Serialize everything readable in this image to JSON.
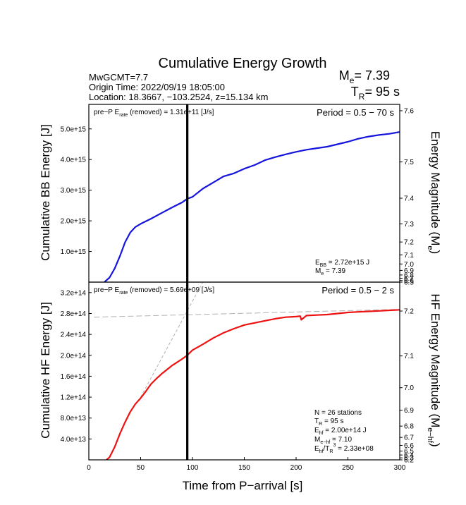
{
  "header": {
    "title": "Cumulative Energy Growth",
    "event_name": "MwGCMT=7.7",
    "origin_time": "Origin Time: 2022/09/19 18:05:00",
    "location": "Location: 18.3667, −103.2524, z=15.134 km",
    "me_prefix": "M",
    "me_sub": "e",
    "me_value": "= 7.39",
    "tr_prefix": "T",
    "tr_sub": "R",
    "tr_value": "= 95 s"
  },
  "x_axis": {
    "label": "Time from P−arrival [s]",
    "range": [
      0,
      300
    ],
    "ticks": [
      0,
      50,
      100,
      150,
      200,
      250,
      300
    ],
    "marker_time": 95
  },
  "chart_data": [
    {
      "type": "line",
      "panel": "broadband",
      "ylabel": "Cumulative BB Energy [J]",
      "ylabel_right": "Energy Magnitude (M",
      "ylabel_right_sub": "e",
      "ylabel_right_end": ")",
      "ylim": [
        0,
        5800000000000000.0
      ],
      "ytick_values": [
        1000000000000000.0,
        2000000000000000.0,
        3000000000000000.0,
        4000000000000000.0,
        5000000000000000.0
      ],
      "ytick_labels": [
        "1.0e+15",
        "2.0e+15",
        "3.0e+15",
        "4.0e+15",
        "5.0e+15"
      ],
      "right_ticks": [
        "7.6",
        "7.5",
        "7.4",
        "7.3",
        "7.2",
        "7.1",
        "7.0",
        "6.9",
        "6.8",
        "6.7",
        "6.6",
        "6.5"
      ],
      "right_tick_values": [
        7.6,
        7.5,
        7.4,
        7.3,
        7.2,
        7.1,
        7.0,
        6.9,
        6.8,
        6.7,
        6.6,
        6.5
      ],
      "period_label": "Period = 0.5 − 70 s",
      "pre_p_prefix": "pre−P E",
      "pre_p_sub": "rate",
      "pre_p_value": " (removed) = 1.31e+11 [J/s]",
      "annot_energy_prefix": "E",
      "annot_energy_sub": "BB",
      "annot_energy_value": " = 2.72e+15 J",
      "annot_mag_prefix": "M",
      "annot_mag_sub": "e",
      "annot_mag_value": " = 7.39",
      "line_color": "#1515dd",
      "x": [
        15,
        20,
        25,
        30,
        35,
        40,
        45,
        50,
        60,
        70,
        80,
        90,
        95,
        100,
        110,
        120,
        130,
        140,
        150,
        160,
        170,
        180,
        190,
        200,
        210,
        220,
        230,
        240,
        250,
        260,
        270,
        280,
        290,
        300
      ],
      "y": [
        0,
        150000000000000.0,
        450000000000000.0,
        850000000000000.0,
        1300000000000000.0,
        1620000000000000.0,
        1800000000000000.0,
        1900000000000000.0,
        2070000000000000.0,
        2250000000000000.0,
        2430000000000000.0,
        2600000000000000.0,
        2720000000000000.0,
        2780000000000000.0,
        3050000000000000.0,
        3250000000000000.0,
        3450000000000000.0,
        3550000000000000.0,
        3700000000000000.0,
        3820000000000000.0,
        3980000000000000.0,
        4080000000000000.0,
        4170000000000000.0,
        4250000000000000.0,
        4320000000000000.0,
        4370000000000000.0,
        4420000000000000.0,
        4500000000000000.0,
        4580000000000000.0,
        4680000000000000.0,
        4750000000000000.0,
        4800000000000000.0,
        4840000000000000.0,
        4900000000000000.0
      ]
    },
    {
      "type": "line",
      "panel": "high-frequency",
      "ylabel": "Cumulative HF Energy [J]",
      "ylabel_right": "HF Energy Magnitude (M",
      "ylabel_right_sub": "e−hf",
      "ylabel_right_end": ")",
      "ylim": [
        0,
        340000000000000.0
      ],
      "ytick_values": [
        40000000000000.0,
        80000000000000.0,
        120000000000000.0,
        160000000000000.0,
        200000000000000.0,
        240000000000000.0,
        280000000000000.0,
        320000000000000.0
      ],
      "ytick_labels": [
        "4.0e+13",
        "8.0e+13",
        "1.2e+14",
        "1.6e+14",
        "2.0e+14",
        "2.4e+14",
        "2.8e+14",
        "3.2e+14"
      ],
      "right_ticks": [
        "7.2",
        "7.1",
        "7.0",
        "6.9",
        "6.8",
        "6.7",
        "6.6",
        "6.5",
        "6.4",
        "6.3",
        "6.2"
      ],
      "right_tick_values": [
        7.2,
        7.1,
        7.0,
        6.9,
        6.8,
        6.7,
        6.6,
        6.5,
        6.4,
        6.3,
        6.2
      ],
      "period_label": "Period = 0.5 − 2 s",
      "pre_p_prefix": "pre−P E",
      "pre_p_sub": "rate",
      "pre_p_value": " (removed) = 5.69e+09 [J/s]",
      "annot_stations": "N = 26 stations",
      "annot_tr_prefix": "T",
      "annot_tr_sub": "R",
      "annot_tr_value": " = 95  s",
      "annot_ehf_prefix": "E",
      "annot_ehf_sub": "hf",
      "annot_ehf_value": " = 2.00e+14 J",
      "annot_mehf_prefix": "M",
      "annot_mehf_sub": "e−hf",
      "annot_mehf_value": " = 7.10",
      "annot_ratio_prefix": "E",
      "annot_ratio_sub": "hf",
      "annot_ratio_mid": "/T",
      "annot_ratio_sub2": "R",
      "annot_ratio_sup": "3",
      "annot_ratio_value": " =  2.33e+08",
      "line_color": "#ee1111",
      "x": [
        17,
        20,
        25,
        30,
        35,
        40,
        45,
        50,
        55,
        60,
        65,
        70,
        80,
        90,
        95,
        100,
        110,
        120,
        130,
        140,
        150,
        160,
        170,
        180,
        190,
        200,
        204,
        205,
        210,
        220,
        230,
        240,
        250,
        260,
        270,
        280,
        290,
        300
      ],
      "y": [
        0,
        5000000000000.0,
        25000000000000.0,
        50000000000000.0,
        72000000000000.0,
        92000000000000.0,
        107000000000000.0,
        118000000000000.0,
        131000000000000.0,
        145000000000000.0,
        155000000000000.0,
        164000000000000.0,
        180000000000000.0,
        193000000000000.0,
        200000000000000.0,
        210000000000000.0,
        221000000000000.0,
        233000000000000.0,
        243000000000000.0,
        251000000000000.0,
        258000000000000.0,
        262000000000000.0,
        266000000000000.0,
        270000000000000.0,
        273000000000000.0,
        274000000000000.0,
        275000000000000.0,
        268000000000000.0,
        276000000000000.0,
        277000000000000.0,
        278000000000000.0,
        280000000000000.0,
        282000000000000.0,
        283000000000000.0,
        284000000000000.0,
        285000000000000.0,
        286000000000000.0,
        287000000000000.0
      ],
      "guide_flat": {
        "x": [
          5,
          300
        ],
        "y": [
          273000000000000.0,
          288000000000000.0
        ]
      },
      "guide_steep": {
        "x": [
          50,
          110
        ],
        "y": [
          120000000000000.0,
          340000000000000.0
        ]
      }
    }
  ]
}
